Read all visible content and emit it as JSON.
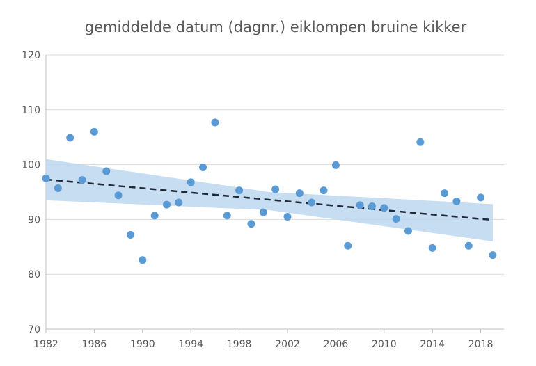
{
  "chart_data": {
    "type": "scatter",
    "title": "gemiddelde datum (dagnr.) eiklompen bruine kikker",
    "xlabel": "",
    "ylabel": "",
    "xlim": [
      1982,
      2019
    ],
    "ylim": [
      70,
      120
    ],
    "xticks": [
      1982,
      1986,
      1990,
      1994,
      1998,
      2002,
      2006,
      2010,
      2014,
      2018
    ],
    "yticks": [
      70,
      80,
      90,
      100,
      110,
      120
    ],
    "grid": "horizontal",
    "colors": {
      "points": "#5b9bd5",
      "band": "#bdd7ee",
      "trend": "#1f2937",
      "grid": "#d9d9d9",
      "text": "#595959"
    },
    "points": [
      {
        "x": 1982,
        "y": 97.5
      },
      {
        "x": 1983,
        "y": 95.7
      },
      {
        "x": 1984,
        "y": 104.9
      },
      {
        "x": 1985,
        "y": 97.2
      },
      {
        "x": 1986,
        "y": 106
      },
      {
        "x": 1987,
        "y": 98.8
      },
      {
        "x": 1988,
        "y": 94.4
      },
      {
        "x": 1989,
        "y": 87.2
      },
      {
        "x": 1990,
        "y": 82.6
      },
      {
        "x": 1991,
        "y": 90.7
      },
      {
        "x": 1992,
        "y": 92.7
      },
      {
        "x": 1993,
        "y": 93.1
      },
      {
        "x": 1994,
        "y": 96.8
      },
      {
        "x": 1995,
        "y": 99.5
      },
      {
        "x": 1996,
        "y": 107.7
      },
      {
        "x": 1997,
        "y": 90.7
      },
      {
        "x": 1998,
        "y": 95.3
      },
      {
        "x": 1999,
        "y": 89.2
      },
      {
        "x": 2000,
        "y": 91.3
      },
      {
        "x": 2001,
        "y": 95.5
      },
      {
        "x": 2002,
        "y": 90.5
      },
      {
        "x": 2003,
        "y": 94.8
      },
      {
        "x": 2004,
        "y": 93.1
      },
      {
        "x": 2005,
        "y": 95.3
      },
      {
        "x": 2006,
        "y": 99.9
      },
      {
        "x": 2007,
        "y": 85.2
      },
      {
        "x": 2008,
        "y": 92.6
      },
      {
        "x": 2009,
        "y": 92.4
      },
      {
        "x": 2010,
        "y": 92.1
      },
      {
        "x": 2011,
        "y": 90.1
      },
      {
        "x": 2012,
        "y": 87.9
      },
      {
        "x": 2013,
        "y": 104.1
      },
      {
        "x": 2014,
        "y": 84.8
      },
      {
        "x": 2015,
        "y": 94.8
      },
      {
        "x": 2016,
        "y": 93.3
      },
      {
        "x": 2017,
        "y": 85.2
      },
      {
        "x": 2018,
        "y": 94
      },
      {
        "x": 2019,
        "y": 83.5
      }
    ],
    "trend": {
      "x": [
        1982,
        2019
      ],
      "y": [
        97.3,
        89.9
      ]
    },
    "band": {
      "x": [
        1982,
        2000.5,
        2019
      ],
      "upper": [
        101,
        95.0,
        92.8
      ],
      "lower": [
        93.5,
        91.7,
        86.0
      ]
    }
  }
}
